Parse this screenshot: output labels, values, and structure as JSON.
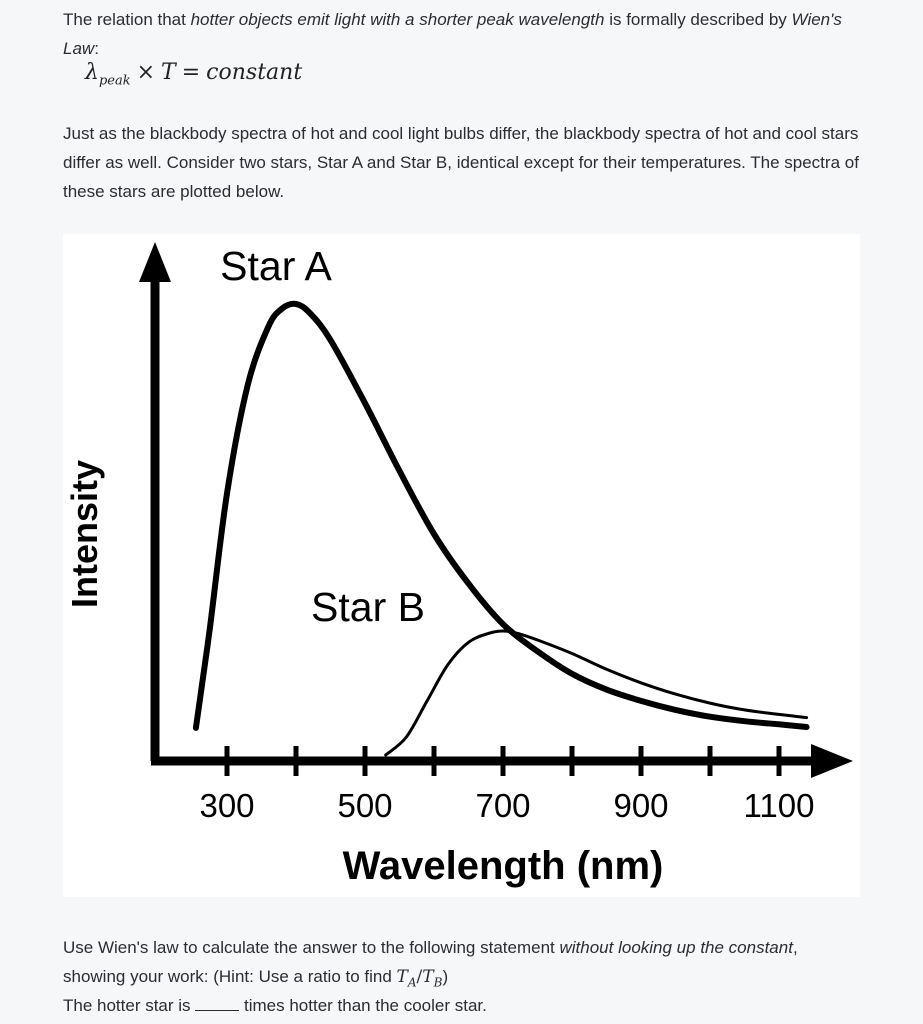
{
  "intro": {
    "part1": "The relation that ",
    "italic1": "hotter objects emit light with a shorter peak wavelength",
    "part2": " is formally described by ",
    "italic2": "Wien's Law",
    "part3": ":"
  },
  "equation": {
    "lambda": "λ",
    "sub": "peak",
    "times": "×",
    "T": "T",
    "equals": "=",
    "rhs": "constant"
  },
  "paragraph2": "Just as the blackbody spectra of hot and cool light bulbs differ, the blackbody spectra of hot and cool stars differ as well. Consider two stars, Star A and Star B, identical except for their temperatures. The spectra of these stars are plotted below.",
  "chart_data": {
    "type": "line",
    "xlabel": "Wavelength (nm)",
    "ylabel": "Intensity",
    "x_ticks": [
      300,
      500,
      700,
      900,
      1100
    ],
    "xlim": [
      200,
      1200
    ],
    "ylim": [
      0,
      1
    ],
    "grid": false,
    "legend": "none",
    "series": [
      {
        "name": "Star A",
        "peak_x": 400,
        "x": [
          255,
          275,
          300,
          330,
          360,
          380,
          400,
          420,
          450,
          500,
          550,
          600,
          650,
          700,
          750,
          800,
          850,
          900,
          950,
          1000,
          1050,
          1100,
          1140
        ],
        "y": [
          0.06,
          0.28,
          0.58,
          0.82,
          0.95,
          0.99,
          1.0,
          0.98,
          0.92,
          0.78,
          0.63,
          0.49,
          0.38,
          0.29,
          0.23,
          0.18,
          0.145,
          0.12,
          0.1,
          0.085,
          0.075,
          0.068,
          0.062
        ]
      },
      {
        "name": "Star B",
        "peak_x": 700,
        "x": [
          530,
          560,
          590,
          620,
          650,
          680,
          700,
          720,
          750,
          800,
          850,
          900,
          950,
          1000,
          1050,
          1100,
          1140
        ],
        "y": [
          0.0,
          0.04,
          0.12,
          0.2,
          0.25,
          0.27,
          0.275,
          0.27,
          0.255,
          0.225,
          0.19,
          0.16,
          0.135,
          0.115,
          0.1,
          0.09,
          0.083
        ]
      }
    ]
  },
  "question": {
    "part1": "Use Wien's law to calculate the answer to the following statement ",
    "italic1": "without looking up the constant",
    "part2": ", showing your work: (Hint: Use a ratio to find ",
    "ratio_T1": "T",
    "ratio_sub1": "A",
    "ratio_slash": "/",
    "ratio_T2": "T",
    "ratio_sub2": "B",
    "part3": ")"
  },
  "statement": {
    "part1": "The hotter star is ",
    "part2": " times hotter than the cooler star."
  }
}
